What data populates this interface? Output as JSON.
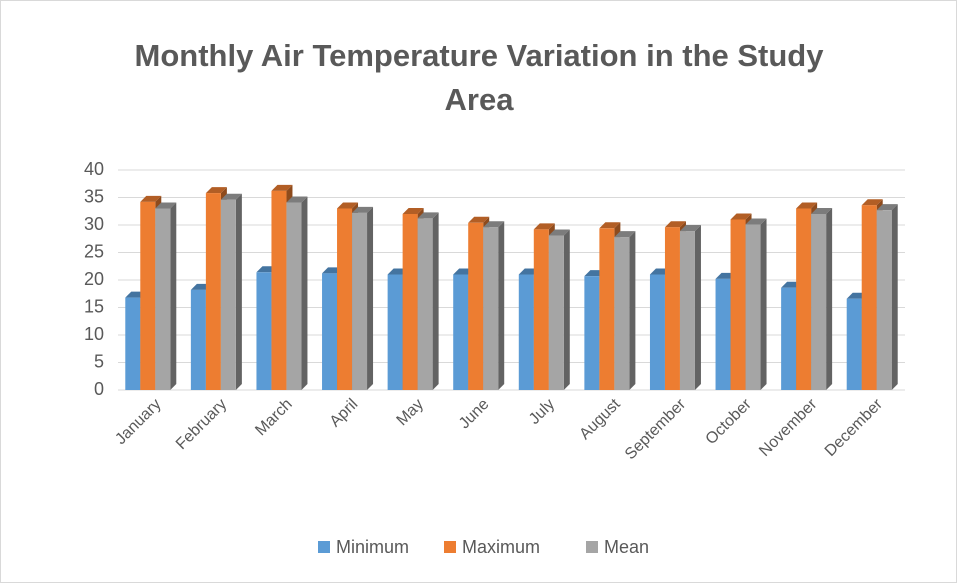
{
  "chart_data": {
    "type": "bar3d",
    "title": "Monthly Air Temperature Variation in the Study Area",
    "categories": [
      "January",
      "February",
      "March",
      "April",
      "May",
      "June",
      "July",
      "August",
      "September",
      "October",
      "November",
      "December"
    ],
    "series": [
      {
        "name": "Minimum",
        "color": "#5b9bd5",
        "values": [
          16.8,
          18.2,
          21.4,
          21.2,
          21.0,
          21.0,
          21.0,
          20.7,
          21.0,
          20.2,
          18.6,
          16.6
        ]
      },
      {
        "name": "Maximum",
        "color": "#ed7d31",
        "values": [
          34.2,
          35.8,
          36.2,
          33.0,
          32.0,
          30.4,
          29.2,
          29.4,
          29.6,
          31.0,
          33.0,
          33.6
        ]
      },
      {
        "name": "Mean",
        "color": "#a5a5a5",
        "values": [
          33.0,
          34.6,
          34.1,
          32.2,
          31.2,
          29.6,
          28.1,
          27.8,
          28.9,
          30.1,
          32.0,
          32.7
        ]
      }
    ],
    "ylim": [
      0,
      40
    ],
    "yticks": [
      0,
      5,
      10,
      15,
      20,
      25,
      30,
      35,
      40
    ],
    "grid": true,
    "legend": "bottom"
  }
}
